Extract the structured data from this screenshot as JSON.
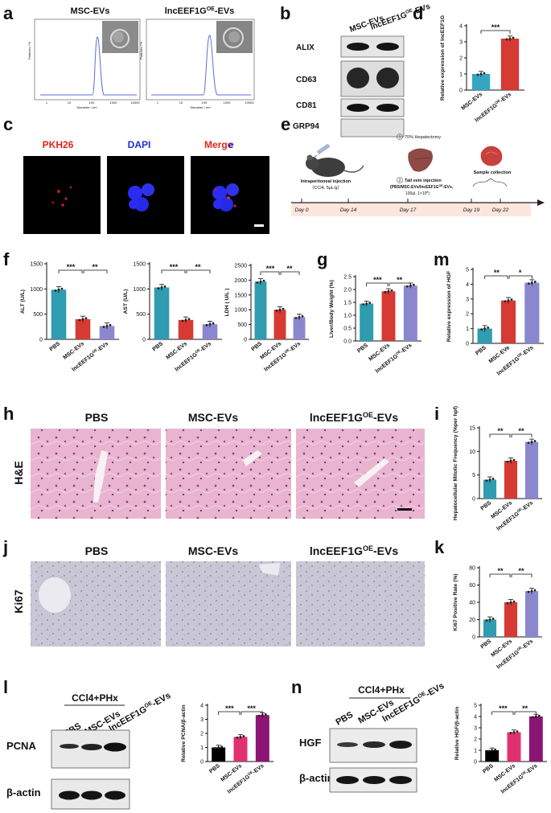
{
  "panels": {
    "a": "a",
    "b": "b",
    "c": "c",
    "d": "d",
    "e": "e",
    "f": "f",
    "g": "g",
    "h": "h",
    "i": "i",
    "j": "j",
    "k": "k",
    "l": "l",
    "m": "m",
    "n": "n"
  },
  "colors": {
    "pbs": "#2f9cb0",
    "msc": "#d63a32",
    "oe": "#8b87cf",
    "wb_pbs": "#000000",
    "wb_msc": "#e0306f",
    "wb_oe": "#8a1572",
    "d_pbs": "#35a6c2",
    "d_oe": "#d63a32"
  },
  "panel_a": {
    "titles": [
      "MSC-EVs",
      "lncEEF1G",
      "OE",
      "-EVs"
    ],
    "xlabel": "Diameter / nm",
    "ylabel": "Particles / %",
    "xticks": [
      "1",
      "10",
      "100",
      "1000",
      "10000"
    ]
  },
  "panel_b": {
    "lanes": [
      "MSC-EVs",
      "lncEEF1G",
      "OE",
      "-EVs"
    ],
    "proteins": [
      "ALIX",
      "CD63",
      "CD81",
      "GRP94"
    ]
  },
  "panel_c": {
    "labels": [
      "PKH26",
      "DAPI",
      "Merge"
    ]
  },
  "panel_e": {
    "step1": "70% Hepatectomy",
    "step1_num": "1",
    "step2_num": "2",
    "step2a": "Tail vein injection",
    "step2b": "(PBS/MSC-EVs/lncEEF1G",
    "step2b_sup": "OE",
    "step2b_end": "-EVs,",
    "step2c": "100μl, 1×10",
    "step2c_sup": "8",
    "step2c_end": ")",
    "ip_a": "Intraperitoneal injection",
    "ip_b": "（CCl4, 5μL/g）",
    "sample": "Sample collection",
    "days": [
      "Day 0",
      "Day 14",
      "Day 17",
      "Day 19",
      "Day 22"
    ]
  },
  "sig": {
    "three": "***",
    "two": "**",
    "one": "*"
  },
  "xgroups": {
    "pbs": "PBS",
    "msc": "MSC-EVs",
    "msc_alt": "MSC-EVe",
    "oe_a": "lncEEF1G",
    "oe_sup": "OE",
    "oe_b": "-EVs"
  },
  "panel_h": {
    "cols": [
      "PBS",
      "MSC-EVs",
      "lncEEF1G",
      "OE",
      "-EVs"
    ],
    "row": "H&E"
  },
  "panel_j": {
    "cols": [
      "PBS",
      "MSC-EVs",
      "lncEEF1G",
      "OE",
      "-EVs"
    ],
    "row": "Ki67"
  },
  "panel_l": {
    "treatment": "CCl4+PHx",
    "lanes": [
      "PBS",
      "MSC-EVs",
      "lncEEF1G",
      "OE",
      "-EVs"
    ],
    "proteins": [
      "PCNA",
      "β-actin"
    ]
  },
  "panel_n": {
    "treatment": "CCl4+PHx",
    "lanes": [
      "PBS",
      "MSC-EVs",
      "lncEEF1G",
      "OE",
      "-EVs"
    ],
    "proteins": [
      "HGF",
      "β-actin"
    ]
  },
  "chart_data": [
    {
      "id": "d",
      "type": "bar",
      "categories": [
        "MSC-EVs",
        "lncEEF1G-OE-EVs"
      ],
      "values": [
        1.0,
        3.2
      ],
      "ylabel": "Relative expression of lncEEF1G",
      "ylim": [
        0,
        4
      ],
      "yticks": [
        0,
        1,
        2,
        3,
        4
      ],
      "sig": [
        "***"
      ]
    },
    {
      "id": "f1",
      "type": "bar",
      "categories": [
        "PBS",
        "MSC-EVs",
        "lncEEF1G-OE-EVs"
      ],
      "values": [
        985,
        400,
        265
      ],
      "ylabel": "ALT (U/L)",
      "ylim": [
        0,
        1500
      ],
      "yticks": [
        0,
        500,
        1000,
        1500
      ],
      "sig": [
        "***",
        "**"
      ]
    },
    {
      "id": "f2",
      "type": "bar",
      "categories": [
        "PBS",
        "MSC-EVs",
        "lncEEF1G-OE-EVs"
      ],
      "values": [
        1030,
        385,
        300
      ],
      "ylabel": "AST (U/L)",
      "ylim": [
        0,
        1500
      ],
      "yticks": [
        0,
        500,
        1000,
        1500
      ],
      "sig": [
        "***",
        "**"
      ]
    },
    {
      "id": "f3",
      "type": "bar",
      "categories": [
        "PBS",
        "MSC-EVs",
        "lncEEF1G-OE-EVs"
      ],
      "values": [
        1950,
        1000,
        750
      ],
      "ylabel": "LDH ( U/L )",
      "ylim": [
        0,
        2500
      ],
      "yticks": [
        0,
        500,
        1000,
        1500,
        2000,
        2500
      ],
      "sig": [
        "***",
        "**"
      ]
    },
    {
      "id": "g",
      "type": "bar",
      "categories": [
        "PBS",
        "MSC-EVs",
        "lncEEF1G-OE-EVs"
      ],
      "values": [
        1.45,
        1.93,
        2.15
      ],
      "ylabel": "Liver/Body Weight (%)",
      "ylim": [
        0,
        2.5
      ],
      "yticks": [
        0.0,
        0.5,
        1.0,
        1.5,
        2.0,
        2.5
      ],
      "sig": [
        "***",
        "**"
      ]
    },
    {
      "id": "m",
      "type": "bar",
      "categories": [
        "PBS",
        "MSC-EVe",
        "lncEEF1G-OE-EVs"
      ],
      "values": [
        1.0,
        2.9,
        4.1
      ],
      "ylabel": "Relative expression of HGF",
      "ylim": [
        0,
        5
      ],
      "yticks": [
        0,
        1,
        2,
        3,
        4,
        5
      ],
      "sig": [
        "**",
        "*"
      ]
    },
    {
      "id": "i",
      "type": "bar",
      "categories": [
        "PBS",
        "MSC-EVs",
        "lncEEF1G-OE-EVs"
      ],
      "values": [
        4,
        8,
        12
      ],
      "ylabel": "Hepatocellular Mitotic Frequency (%per hpf)",
      "ylim": [
        0,
        15
      ],
      "yticks": [
        0,
        5,
        10,
        15
      ],
      "sig": [
        "**",
        "**"
      ]
    },
    {
      "id": "k",
      "type": "bar",
      "categories": [
        "PBS",
        "MSC-EVs",
        "lncEEF1G-OE-EVs"
      ],
      "values": [
        20,
        40,
        53
      ],
      "ylabel": "Ki67 Positive Rate (%)",
      "ylim": [
        0,
        80
      ],
      "yticks": [
        0,
        20,
        40,
        60,
        80
      ],
      "sig": [
        "**",
        "**"
      ]
    },
    {
      "id": "l",
      "type": "bar",
      "categories": [
        "PBS",
        "MSC-EVs",
        "lncEEF1G-OE-EVs"
      ],
      "values": [
        1.0,
        1.75,
        3.3
      ],
      "ylabel": "Relative PCNA/β-actin",
      "ylim": [
        0,
        4
      ],
      "yticks": [
        0,
        1,
        2,
        3,
        4
      ],
      "sig": [
        "***",
        "***"
      ]
    },
    {
      "id": "n",
      "type": "bar",
      "categories": [
        "PBS",
        "MSC-EVs",
        "lncEEF1G-OE-EVs"
      ],
      "values": [
        1.0,
        2.6,
        4.0
      ],
      "ylabel": "Relative HGF/β-actin",
      "ylim": [
        0,
        5
      ],
      "yticks": [
        0,
        1,
        2,
        3,
        4,
        5
      ],
      "sig": [
        "***",
        "**"
      ]
    }
  ]
}
